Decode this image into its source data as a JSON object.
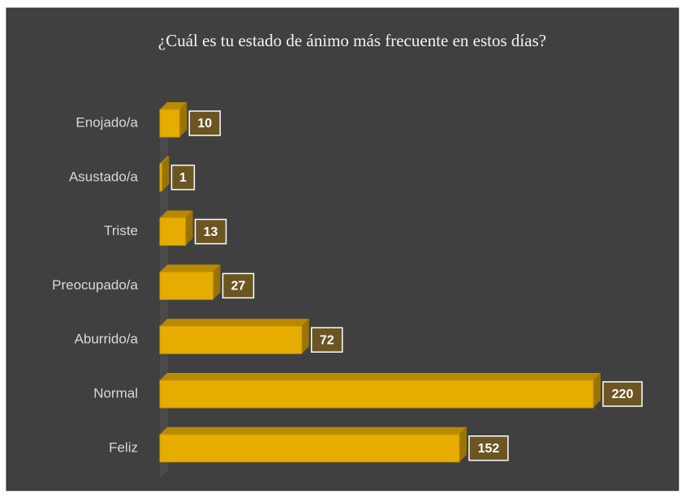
{
  "chart_data": {
    "type": "bar",
    "orientation": "horizontal",
    "title": "¿Cuál es tu estado de ánimo más frecuente en estos días?",
    "categories": [
      "Enojado/a",
      "Asustado/a",
      "Triste",
      "Preocupado/a",
      "Aburrido/a",
      "Normal",
      "Feliz"
    ],
    "values": [
      10,
      1,
      13,
      27,
      72,
      220,
      152
    ],
    "color": "#e6ac00"
  }
}
